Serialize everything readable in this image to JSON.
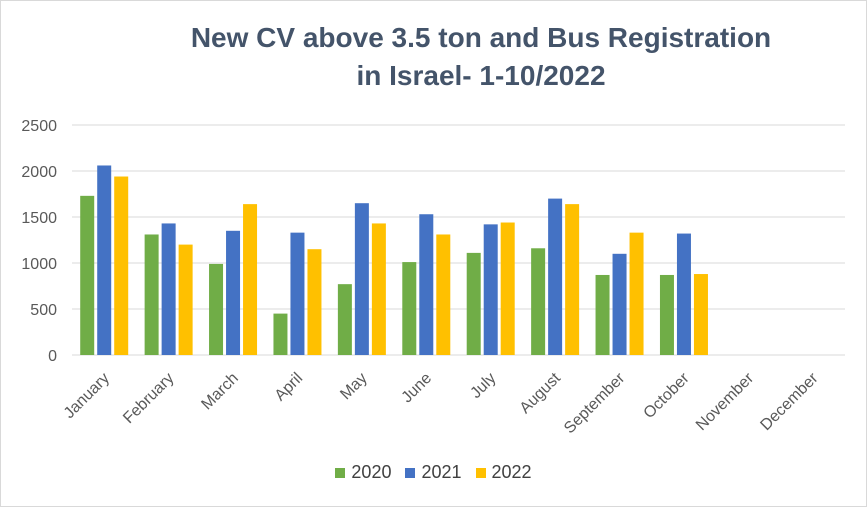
{
  "chart_data": {
    "type": "bar",
    "title_line1": "New CV above 3.5 ton and Bus Registration",
    "title_line2": "in Israel- 1-10/2022",
    "categories": [
      "January",
      "February",
      "March",
      "April",
      "May",
      "June",
      "July",
      "August",
      "September",
      "October",
      "November",
      "December"
    ],
    "series": [
      {
        "name": "2020",
        "color": "#70ad47",
        "values": [
          1730,
          1310,
          990,
          450,
          770,
          1010,
          1110,
          1160,
          870,
          870,
          0,
          0
        ]
      },
      {
        "name": "2021",
        "color": "#4472c4",
        "values": [
          2060,
          1430,
          1350,
          1330,
          1650,
          1530,
          1420,
          1700,
          1100,
          1320,
          0,
          0
        ]
      },
      {
        "name": "2022",
        "color": "#ffc000",
        "values": [
          1940,
          1200,
          1640,
          1150,
          1430,
          1310,
          1440,
          1640,
          1330,
          880,
          0,
          0
        ]
      }
    ],
    "yticks": [
      "0",
      "500",
      "1000",
      "1500",
      "2000",
      "2500"
    ],
    "ylim": [
      0,
      2500
    ],
    "grid": true,
    "legend_position": "bottom"
  }
}
